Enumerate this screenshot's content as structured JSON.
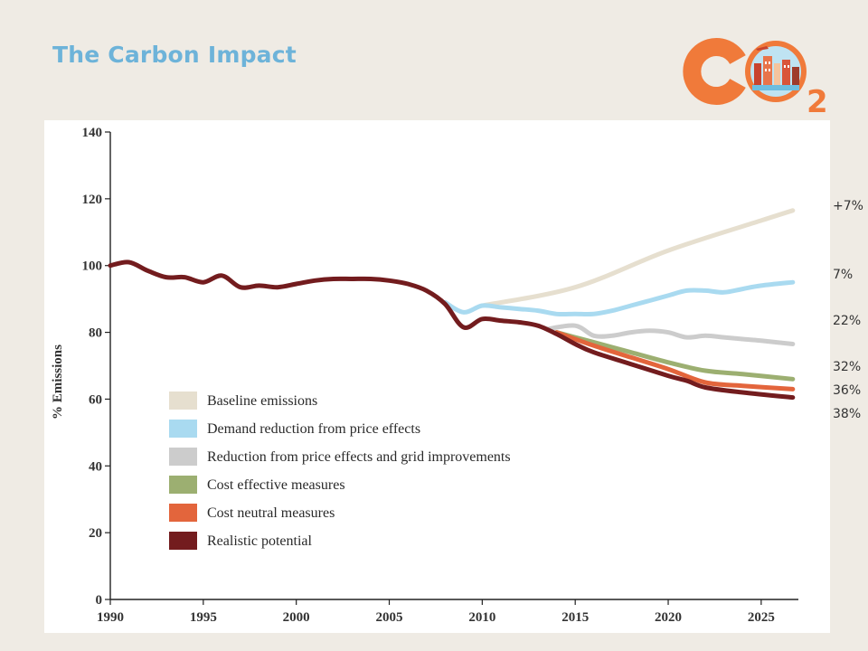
{
  "slide": {
    "title": "The Carbon Impact",
    "logo_text": "CO2"
  },
  "colors": {
    "title": "#6db3d9",
    "background": "#efebe4",
    "logo_orange": "#f07a3a",
    "logo_blue": "#6cbde0"
  },
  "annotations": [
    "+7%",
    "7%",
    "22%",
    "32%",
    "36%",
    "38%"
  ],
  "chart_data": {
    "type": "line",
    "title": "",
    "xlabel": "",
    "ylabel": "% Emissions",
    "xlim": [
      1990,
      2027
    ],
    "ylim": [
      0,
      140
    ],
    "x_ticks": [
      "1990",
      "1995",
      "2000",
      "2005",
      "2010",
      "2015",
      "2020",
      "2025"
    ],
    "y_ticks": [
      "0",
      "20",
      "40",
      "60",
      "80",
      "100",
      "120",
      "140"
    ],
    "grid": false,
    "legend_position": "bottom-left",
    "series": [
      {
        "name": "Baseline emissions",
        "color": "#e6dfcf",
        "points": [
          [
            2010,
            88
          ],
          [
            2015,
            93.5
          ],
          [
            2020,
            104.5
          ],
          [
            2025,
            113.5
          ],
          [
            2026.7,
            116.5
          ]
        ]
      },
      {
        "name": "Demand reduction from price effects",
        "color": "#a9daf0",
        "points": [
          [
            2008,
            89
          ],
          [
            2009,
            86
          ],
          [
            2010,
            88
          ],
          [
            2011,
            87.5
          ],
          [
            2012,
            87
          ],
          [
            2013,
            86.5
          ],
          [
            2014,
            85.5
          ],
          [
            2015,
            85.5
          ],
          [
            2016,
            85.5
          ],
          [
            2017,
            86.5
          ],
          [
            2018,
            88
          ],
          [
            2019,
            89.5
          ],
          [
            2020,
            91
          ],
          [
            2021,
            92.5
          ],
          [
            2022,
            92.5
          ],
          [
            2023,
            92
          ],
          [
            2024,
            93
          ],
          [
            2025,
            94
          ],
          [
            2026.7,
            95
          ]
        ]
      },
      {
        "name": "Reduction from price effects and grid improvements",
        "color": "#cccccc",
        "points": [
          [
            2013.5,
            81
          ],
          [
            2015,
            82
          ],
          [
            2016,
            79
          ],
          [
            2017,
            79
          ],
          [
            2018,
            80
          ],
          [
            2019,
            80.5
          ],
          [
            2020,
            80
          ],
          [
            2021,
            78.5
          ],
          [
            2022,
            79
          ],
          [
            2023,
            78.5
          ],
          [
            2024,
            78
          ],
          [
            2025,
            77.5
          ],
          [
            2026.7,
            76.5
          ]
        ]
      },
      {
        "name": "Cost effective measures",
        "color": "#9caf71",
        "points": [
          [
            2014,
            80
          ],
          [
            2016,
            77
          ],
          [
            2018,
            74
          ],
          [
            2020,
            71
          ],
          [
            2022,
            68.5
          ],
          [
            2024,
            67.5
          ],
          [
            2026.7,
            66
          ]
        ]
      },
      {
        "name": "Cost neutral measures",
        "color": "#e3653c",
        "points": [
          [
            2014,
            80
          ],
          [
            2016,
            76
          ],
          [
            2018,
            72.5
          ],
          [
            2020,
            69
          ],
          [
            2022,
            65
          ],
          [
            2024,
            64
          ],
          [
            2026.7,
            63
          ]
        ]
      },
      {
        "name": "Realistic potential",
        "color": "#731c1e",
        "points": [
          [
            1990,
            100
          ],
          [
            1991,
            101
          ],
          [
            1992,
            98.5
          ],
          [
            1993,
            96.5
          ],
          [
            1994,
            96.5
          ],
          [
            1995,
            95
          ],
          [
            1996,
            97
          ],
          [
            1997,
            93.5
          ],
          [
            1998,
            94
          ],
          [
            1999,
            93.5
          ],
          [
            2000,
            94.5
          ],
          [
            2001,
            95.5
          ],
          [
            2002,
            96
          ],
          [
            2003,
            96
          ],
          [
            2004,
            96
          ],
          [
            2005,
            95.5
          ],
          [
            2006,
            94.5
          ],
          [
            2007,
            92.5
          ],
          [
            2008,
            88.5
          ],
          [
            2009,
            81.5
          ],
          [
            2010,
            84
          ],
          [
            2011,
            83.5
          ],
          [
            2012,
            83
          ],
          [
            2013,
            82
          ],
          [
            2014,
            79.5
          ],
          [
            2015,
            76.5
          ],
          [
            2016,
            74
          ],
          [
            2018,
            70.5
          ],
          [
            2020,
            67
          ],
          [
            2021,
            65.5
          ],
          [
            2022,
            63.5
          ],
          [
            2024,
            62
          ],
          [
            2026.7,
            60.5
          ]
        ]
      }
    ]
  }
}
